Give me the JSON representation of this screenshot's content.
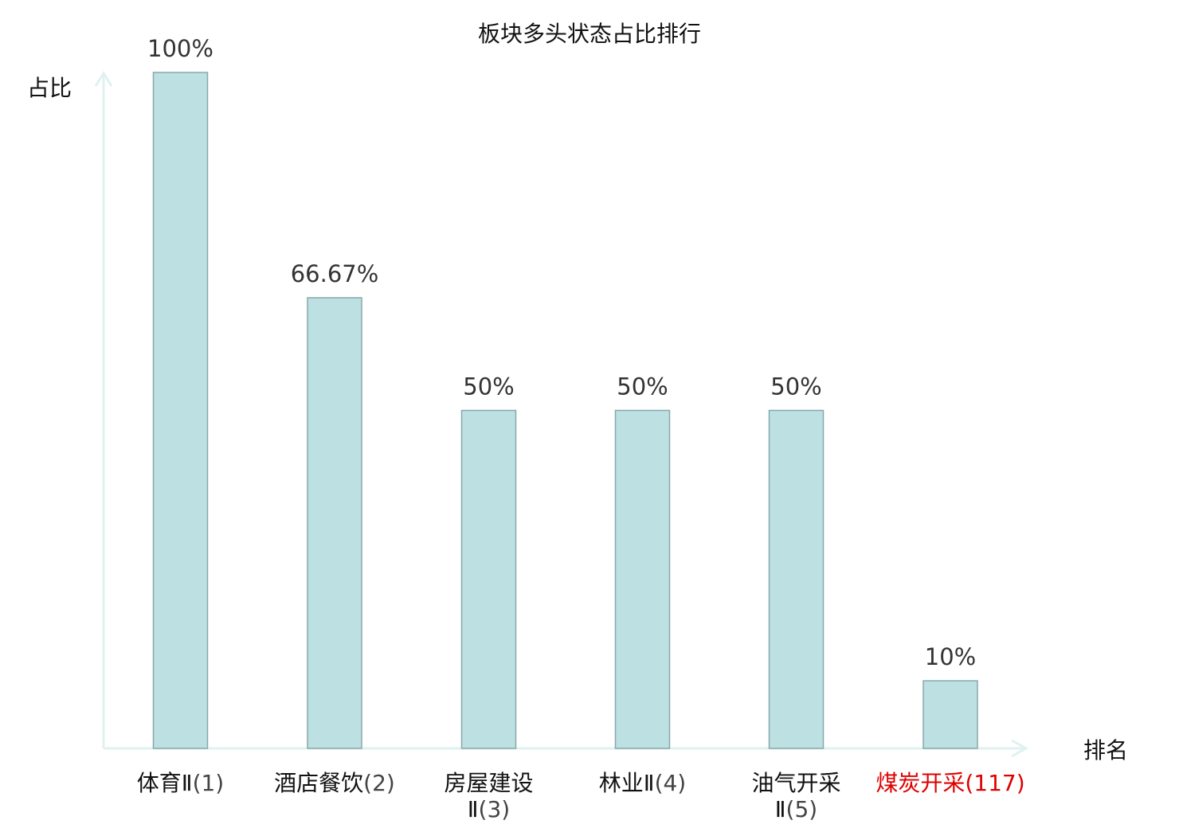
{
  "chart_data": {
    "type": "bar",
    "title": "板块多头状态占比排行",
    "ylabel": "占比",
    "xlabel": "排名",
    "ylim": [
      0,
      100
    ],
    "grid": false,
    "categories": [
      {
        "line1": "体育Ⅱ",
        "line2": "",
        "rank": "(1)",
        "highlight": false
      },
      {
        "line1": "酒店餐饮",
        "line2": "",
        "rank": "(2)",
        "highlight": false
      },
      {
        "line1": "房屋建设",
        "line2": "Ⅱ",
        "rank": "(3)",
        "highlight": false
      },
      {
        "line1": "林业Ⅱ",
        "line2": "",
        "rank": "(4)",
        "highlight": false
      },
      {
        "line1": "油气开采",
        "line2": "Ⅱ",
        "rank": "(5)",
        "highlight": false
      },
      {
        "line1": "煤炭开采",
        "line2": "",
        "rank": "(117)",
        "highlight": true
      }
    ],
    "values": [
      100,
      66.67,
      50,
      50,
      50,
      10
    ],
    "value_labels": [
      "100%",
      "66.67%",
      "50%",
      "50%",
      "50%",
      "10%"
    ],
    "colors": {
      "bar_fill": "#bde0e3",
      "bar_stroke": "#88a8ab",
      "axis": "#dff2ef",
      "highlight": "#e00000"
    }
  }
}
